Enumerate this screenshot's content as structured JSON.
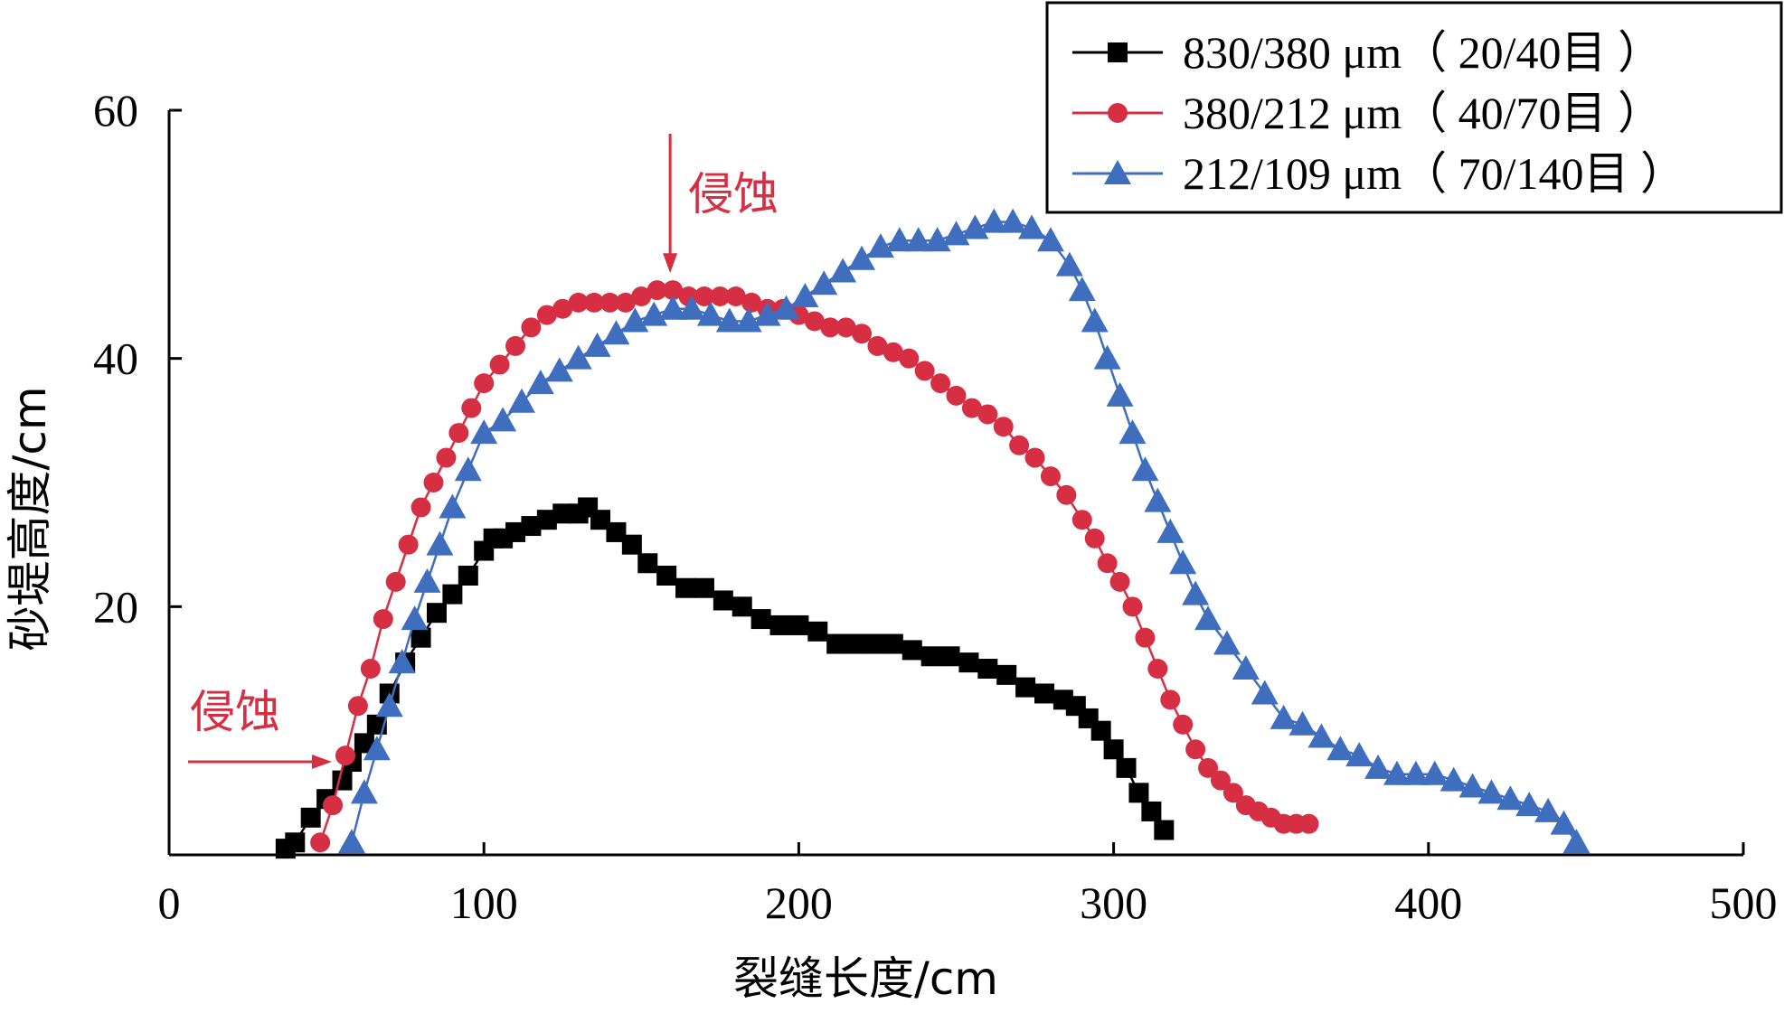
{
  "chart_data": {
    "type": "line",
    "xlabel": "裂缝长度/cm",
    "ylabel": "砂堤高度/cm",
    "xlim": [
      0,
      500
    ],
    "ylim": [
      0,
      60
    ],
    "xticks": [
      0,
      100,
      200,
      300,
      400,
      500
    ],
    "yticks": [
      0,
      20,
      40,
      60
    ],
    "xtick_labels": [
      "0",
      "100",
      "200",
      "300",
      "400",
      "500"
    ],
    "ytick_labels": [
      "0",
      "20",
      "40",
      "60"
    ],
    "grid": false,
    "legend_position": "top-right",
    "annotations": [
      {
        "text": "侵蚀",
        "points_to": [
          58,
          7.5
        ],
        "color": "#d62f43"
      },
      {
        "text": "侵蚀",
        "points_to": [
          160,
          46
        ],
        "color": "#d62f43"
      }
    ],
    "series": [
      {
        "name": "830/380 μm（ 20/40目 ）",
        "color": "#000000",
        "marker": "square",
        "x": [
          37,
          40,
          45,
          50,
          55,
          58,
          62,
          66,
          70,
          75,
          80,
          85,
          90,
          95,
          100,
          103,
          106,
          110,
          115,
          120,
          125,
          130,
          133,
          137,
          142,
          147,
          152,
          158,
          164,
          170,
          176,
          182,
          188,
          194,
          200,
          206,
          212,
          218,
          224,
          230,
          236,
          242,
          248,
          254,
          260,
          266,
          272,
          278,
          284,
          288,
          292,
          296,
          300,
          304,
          308,
          312,
          316
        ],
        "y": [
          0.5,
          1,
          3,
          4.5,
          6,
          7.5,
          9,
          10.5,
          13,
          15.5,
          17.5,
          19.5,
          21,
          22.5,
          24.5,
          25.5,
          25.5,
          26,
          26.5,
          27,
          27.5,
          27.5,
          28,
          27,
          26,
          25,
          23.5,
          22.5,
          21.5,
          21.5,
          20.5,
          20,
          19,
          18.5,
          18.5,
          18,
          17,
          17,
          17,
          17,
          16.5,
          16,
          16,
          15.5,
          15,
          14.5,
          13.5,
          13,
          12.5,
          12,
          11,
          10,
          8.5,
          7,
          5,
          3.5,
          2
        ]
      },
      {
        "name": "380/212 μm（ 40/70目 ）",
        "color": "#d62f43",
        "marker": "circle",
        "x": [
          48,
          52,
          56,
          60,
          64,
          68,
          72,
          76,
          80,
          84,
          88,
          92,
          96,
          100,
          105,
          110,
          115,
          120,
          125,
          130,
          135,
          140,
          145,
          150,
          155,
          160,
          165,
          170,
          175,
          180,
          185,
          190,
          195,
          200,
          205,
          210,
          215,
          220,
          225,
          230,
          235,
          240,
          245,
          250,
          255,
          260,
          265,
          270,
          275,
          280,
          285,
          290,
          294,
          298,
          302,
          306,
          310,
          314,
          318,
          322,
          326,
          330,
          334,
          338,
          342,
          346,
          350,
          354,
          358,
          362
        ],
        "y": [
          1,
          4,
          8,
          12,
          15,
          19,
          22,
          25,
          28,
          30,
          32,
          34,
          36,
          38,
          39.5,
          41,
          42.5,
          43.5,
          44,
          44.5,
          44.5,
          44.5,
          44.5,
          45,
          45.5,
          45.5,
          45,
          45,
          45,
          45,
          44.5,
          44,
          44,
          43.5,
          43,
          42.5,
          42.5,
          42,
          41,
          40.5,
          40,
          39,
          38,
          37,
          36,
          35.5,
          34.5,
          33,
          32,
          30.5,
          29,
          27,
          25.5,
          23.5,
          22,
          20,
          17.5,
          15,
          12.5,
          10.5,
          8.5,
          7,
          6,
          5,
          4,
          3.5,
          3,
          2.5,
          2.5,
          2.5
        ]
      },
      {
        "name": "212/109 μm（ 70/140目 ）",
        "color": "#3f6ebf",
        "marker": "triangle",
        "x": [
          58,
          62,
          66,
          70,
          74,
          78,
          82,
          86,
          90,
          95,
          100,
          106,
          112,
          118,
          124,
          130,
          136,
          142,
          148,
          154,
          160,
          166,
          172,
          178,
          184,
          190,
          196,
          202,
          208,
          214,
          220,
          226,
          232,
          238,
          244,
          250,
          256,
          262,
          268,
          274,
          280,
          286,
          290,
          294,
          298,
          302,
          306,
          310,
          314,
          318,
          322,
          326,
          330,
          336,
          342,
          348,
          354,
          360,
          366,
          372,
          378,
          384,
          390,
          396,
          402,
          408,
          414,
          420,
          426,
          432,
          438,
          443,
          447
        ],
        "y": [
          1,
          5,
          8.5,
          12,
          15.5,
          19,
          22,
          25,
          28,
          31,
          34,
          35,
          36.5,
          38,
          39,
          40,
          41,
          42,
          43,
          43.5,
          44,
          44,
          43.5,
          43,
          43,
          43.5,
          44,
          45,
          46,
          47,
          48,
          49,
          49.5,
          49.5,
          49.5,
          50,
          50.5,
          51,
          51,
          50.5,
          49.5,
          47.5,
          45.5,
          43,
          40,
          37,
          34,
          31,
          28.5,
          26,
          23.5,
          21,
          19,
          17,
          15,
          13,
          11,
          10.5,
          9.5,
          8.5,
          8,
          7,
          6.5,
          6.5,
          6.5,
          6,
          5.5,
          5,
          4.5,
          4,
          3.5,
          2.5,
          1
        ]
      }
    ]
  }
}
